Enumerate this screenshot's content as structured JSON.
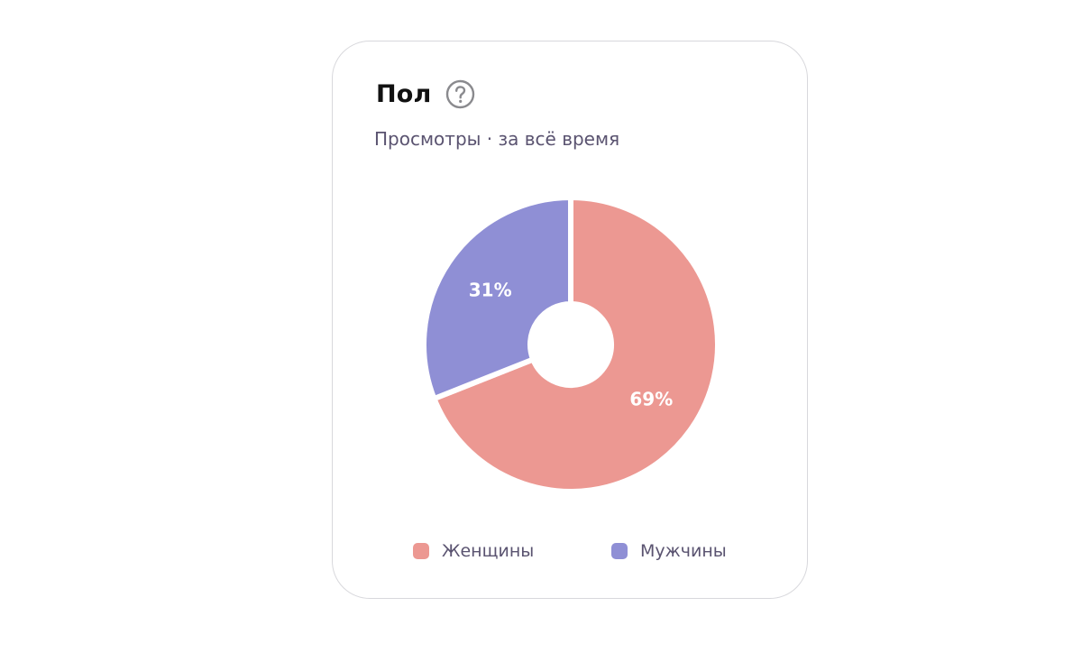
{
  "card": {
    "title": "Пол",
    "subtitle": "Просмотры · за всё время",
    "help_icon": "question-circle-icon"
  },
  "chart_data": {
    "type": "pie",
    "variant": "donut",
    "title": "Пол",
    "subtitle": "Просмотры · за всё время",
    "start_angle_deg": 0,
    "direction": "clockwise",
    "slices": [
      {
        "name": "Женщины",
        "value": 69,
        "label": "69%",
        "color": "#ec9892"
      },
      {
        "name": "Мужчины",
        "value": 31,
        "label": "31%",
        "color": "#8f8fd5"
      }
    ],
    "legend": {
      "placement": "bottom",
      "items": [
        {
          "label": "Женщины",
          "color": "#ec9892"
        },
        {
          "label": "Мужчины",
          "color": "#8f8fd5"
        }
      ]
    }
  }
}
